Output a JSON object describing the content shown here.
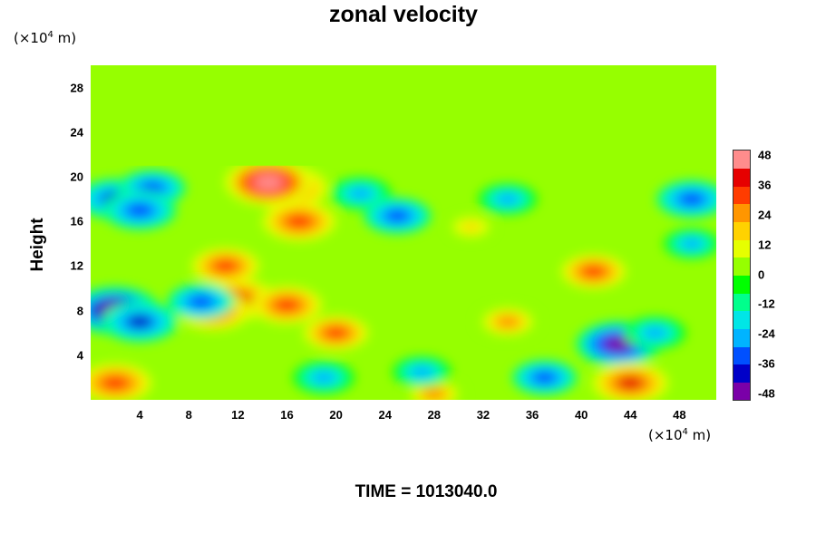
{
  "chart_data": {
    "type": "heatmap",
    "title": "zonal velocity",
    "ylabel": "Height",
    "xlabel": "",
    "y_unit": "(×10⁴ m)",
    "x_unit": "(×10⁴ m)",
    "xlim": [
      0,
      51
    ],
    "ylim": [
      0,
      30
    ],
    "x_ticks": [
      "4",
      "8",
      "12",
      "16",
      "20",
      "24",
      "28",
      "32",
      "36",
      "40",
      "44",
      "48"
    ],
    "y_ticks": [
      "4",
      "8",
      "12",
      "16",
      "20",
      "24",
      "28"
    ],
    "colorbar": {
      "min": -48,
      "max": 48,
      "ticks": [
        "48",
        "36",
        "24",
        "12",
        "0",
        "-12",
        "-24",
        "-36",
        "-48"
      ],
      "colors": [
        "#7a00a8",
        "#0000c8",
        "#0050ff",
        "#00b4ff",
        "#00e6e6",
        "#00ff8c",
        "#00ff00",
        "#96ff00",
        "#e6ff00",
        "#ffd200",
        "#ff9600",
        "#ff3c00",
        "#e60000",
        "#ff8c8c"
      ]
    },
    "background_value": 0,
    "features": [
      {
        "x": 16,
        "y": 19,
        "v": 40
      },
      {
        "x": 14.5,
        "y": 19.5,
        "v": 44
      },
      {
        "x": 17,
        "y": 16,
        "v": 34
      },
      {
        "x": 2,
        "y": 18,
        "v": -36
      },
      {
        "x": 5,
        "y": 19,
        "v": -30
      },
      {
        "x": 4,
        "y": 17,
        "v": -34
      },
      {
        "x": 2,
        "y": 8,
        "v": -46
      },
      {
        "x": 4,
        "y": 7,
        "v": -36
      },
      {
        "x": 20,
        "y": 6,
        "v": 28
      },
      {
        "x": 34,
        "y": 7,
        "v": 26
      },
      {
        "x": 43,
        "y": 5,
        "v": -42
      },
      {
        "x": 44,
        "y": 1.5,
        "v": 36
      },
      {
        "x": 2,
        "y": 1.5,
        "v": 34
      },
      {
        "x": 28,
        "y": 0.5,
        "v": 24
      },
      {
        "x": 11,
        "y": 12,
        "v": 30
      },
      {
        "x": 41,
        "y": 11.5,
        "v": 28
      },
      {
        "x": 22,
        "y": 18.5,
        "v": -26
      },
      {
        "x": 25,
        "y": 16.5,
        "v": -30
      },
      {
        "x": 34,
        "y": 18,
        "v": -24
      },
      {
        "x": 49,
        "y": 18,
        "v": -32
      },
      {
        "x": 31,
        "y": 15.5,
        "v": 14
      },
      {
        "x": 12,
        "y": 9,
        "v": 36
      },
      {
        "x": 10,
        "y": 8,
        "v": 34
      },
      {
        "x": 16,
        "y": 8.5,
        "v": 32
      },
      {
        "x": 9,
        "y": 8.8,
        "v": -30
      },
      {
        "x": 27,
        "y": 2.5,
        "v": -24
      },
      {
        "x": 19,
        "y": 2,
        "v": -26
      },
      {
        "x": 37,
        "y": 2,
        "v": -28
      },
      {
        "x": 49,
        "y": 14,
        "v": -22
      },
      {
        "x": 46,
        "y": 6,
        "v": -26
      }
    ],
    "time_label": "TIME = 1013040.0"
  }
}
